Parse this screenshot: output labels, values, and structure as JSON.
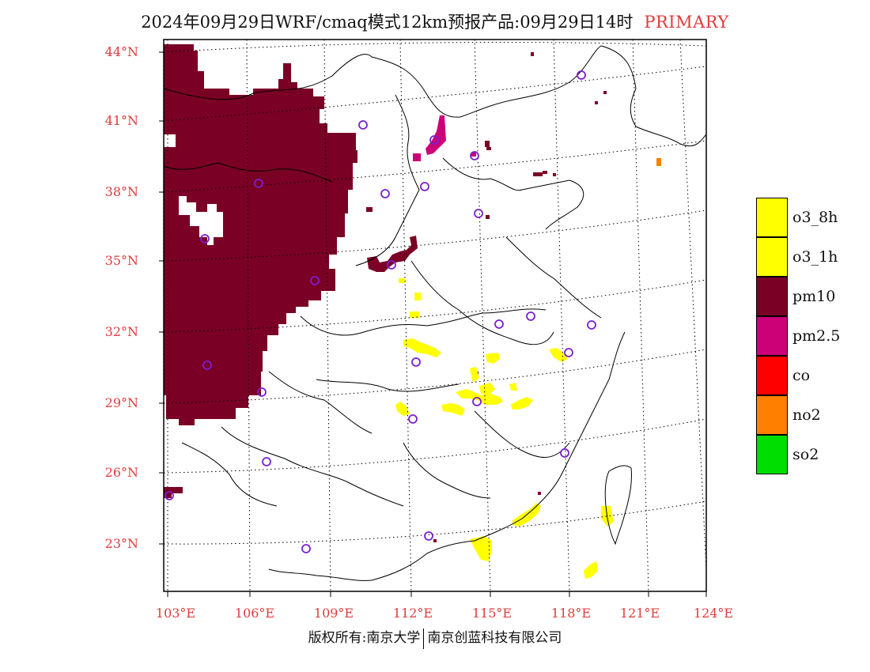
{
  "header": {
    "title": "2024年09月29日WRF/cmaq模式12km预报产品:09月29日14时",
    "mode": "PRIMARY"
  },
  "axes": {
    "lat_labels": [
      "44°N",
      "41°N",
      "38°N",
      "35°N",
      "32°N",
      "29°N",
      "26°N",
      "23°N"
    ],
    "lon_labels": [
      "103°E",
      "106°E",
      "109°E",
      "112°E",
      "115°E",
      "118°E",
      "121°E",
      "124°E"
    ]
  },
  "legend": {
    "items": [
      {
        "label": "o3_8h",
        "color": "#ffff00"
      },
      {
        "label": "o3_1h",
        "color": "#ffff00"
      },
      {
        "label": "pm10",
        "color": "#7a0026"
      },
      {
        "label": "pm2.5",
        "color": "#cc0077"
      },
      {
        "label": "co",
        "color": "#ff0000"
      },
      {
        "label": "no2",
        "color": "#ff7f00"
      },
      {
        "label": "so2",
        "color": "#00dd00"
      }
    ]
  },
  "colors": {
    "pm10": "#7a0026",
    "pm25": "#cc0077",
    "o3": "#ffff00",
    "no2": "#ff7f00",
    "station_marker": "#7a20d0",
    "label_red": "#e23b3b"
  },
  "footer": {
    "copyright": "版权所有:南京大学",
    "company": "南京创蓝科技有限公司"
  }
}
